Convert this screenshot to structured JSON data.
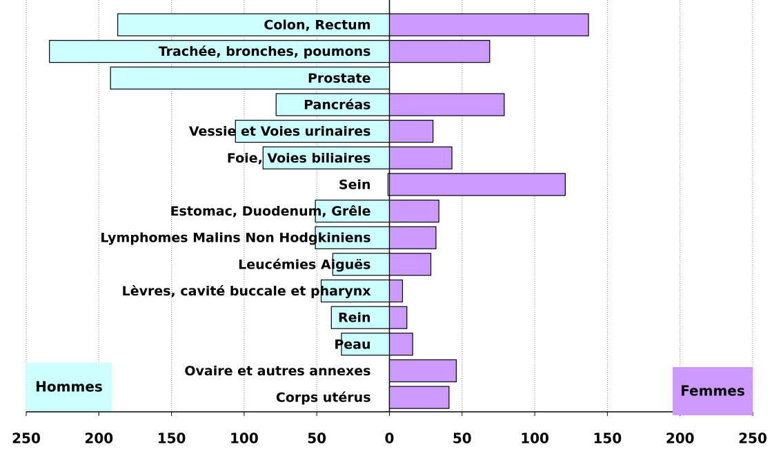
{
  "chart_data": {
    "type": "butterfly-bar",
    "categories": [
      "Colon, Rectum",
      "Trachée, bronches, poumons",
      "Prostate",
      "Pancréas",
      "Vessie et Voies urinaires",
      "Foie, Voies biliaires",
      "Sein",
      "Estomac, Duodenum, Grêle",
      "Lymphomes Malins Non Hodgkiniens",
      "Leucémies Aiguës",
      "Lèvres, cavité buccale et pharynx",
      "Rein",
      "Peau",
      "Ovaire et autres annexes",
      "Corps utérus"
    ],
    "series": [
      {
        "name": "Hommes",
        "color": "#ccffff",
        "values": [
          -187,
          -234,
          -192,
          -78,
          -106,
          -87,
          -1,
          -51,
          -51,
          -39,
          -47,
          -40,
          -33,
          0,
          0
        ]
      },
      {
        "name": "Femmes",
        "color": "#cc99ff",
        "values": [
          137,
          69,
          0,
          79,
          30,
          43,
          121,
          34,
          32,
          28.5,
          9,
          12,
          16,
          46,
          41
        ]
      }
    ],
    "xlim": [
      -250,
      250
    ],
    "xticks": [
      {
        "value": -250,
        "label": "250"
      },
      {
        "value": -200,
        "label": "200"
      },
      {
        "value": -150,
        "label": "150"
      },
      {
        "value": -100,
        "label": "100"
      },
      {
        "value": -50,
        "label": "50"
      },
      0,
      50,
      100,
      150,
      200,
      250
    ],
    "grid": true
  }
}
